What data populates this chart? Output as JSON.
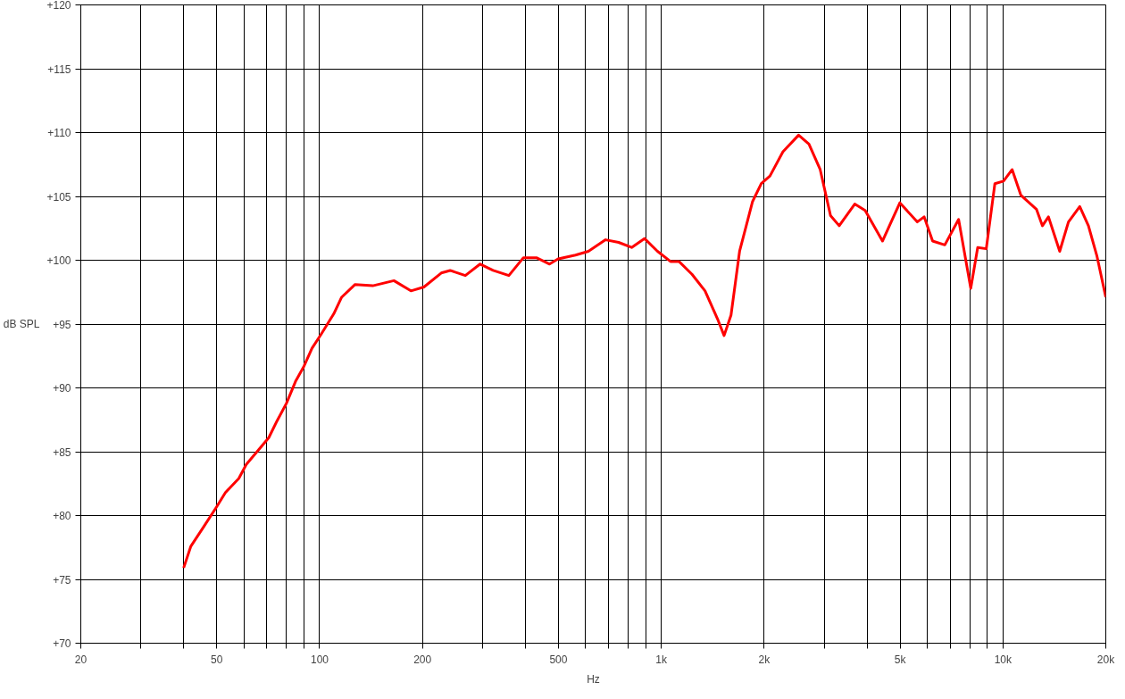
{
  "chart_data": {
    "type": "line",
    "xlabel": "Hz",
    "ylabel": "dB SPL",
    "log": "x",
    "grid": true,
    "line_style": "solid",
    "xlim": [
      20,
      20000
    ],
    "ylim": [
      70,
      120
    ],
    "xticks": [
      20,
      {
        "value": 30,
        "label": null
      },
      {
        "value": 40,
        "label": null
      },
      50,
      {
        "value": 60,
        "label": null
      },
      {
        "value": 70,
        "label": null
      },
      {
        "value": 80,
        "label": null
      },
      {
        "value": 90,
        "label": null
      },
      100,
      200,
      {
        "value": 300,
        "label": null
      },
      {
        "value": 400,
        "label": null
      },
      500,
      {
        "value": 600,
        "label": null
      },
      {
        "value": 700,
        "label": null
      },
      {
        "value": 800,
        "label": null
      },
      {
        "value": 900,
        "label": null
      },
      {
        "value": 1000,
        "label": "1k"
      },
      {
        "value": 2000,
        "label": "2k"
      },
      {
        "value": 3000,
        "label": null
      },
      {
        "value": 4000,
        "label": null
      },
      {
        "value": 5000,
        "label": "5k"
      },
      {
        "value": 6000,
        "label": null
      },
      {
        "value": 7000,
        "label": null
      },
      {
        "value": 8000,
        "label": null
      },
      {
        "value": 9000,
        "label": null
      },
      {
        "value": 10000,
        "label": "10k"
      },
      {
        "value": 20000,
        "label": "20k"
      }
    ],
    "yticks": [
      {
        "value": 70,
        "label": "+70"
      },
      {
        "value": 75,
        "label": "+75"
      },
      {
        "value": 80,
        "label": "+80"
      },
      {
        "value": 85,
        "label": "+85"
      },
      {
        "value": 90,
        "label": "+90"
      },
      {
        "value": 95,
        "label": "+95"
      },
      {
        "value": 100,
        "label": "+100"
      },
      {
        "value": 105,
        "label": "+105"
      },
      {
        "value": 110,
        "label": "+110"
      },
      {
        "value": 115,
        "label": "+115"
      },
      {
        "value": 120,
        "label": "+120"
      }
    ],
    "series": [
      {
        "color": "#ff0000",
        "x": [
          40,
          42,
          46,
          50,
          53,
          58,
          61,
          67,
          71,
          75,
          80,
          85,
          90,
          95,
          101,
          110,
          116,
          127,
          143,
          165,
          185,
          202,
          227,
          241,
          267,
          295,
          322,
          358,
          395,
          431,
          471,
          499,
          561,
          612,
          687,
          750,
          819,
          893,
          975,
          1064,
          1127,
          1230,
          1343,
          1466,
          1527,
          1600,
          1695,
          1850,
          1962,
          2080,
          2270,
          2523,
          2705,
          2918,
          3128,
          3317,
          3683,
          3951,
          4440,
          4993,
          5612,
          5880,
          6225,
          6758,
          7417,
          8050,
          8435,
          8937,
          9470,
          10040,
          10640,
          11280,
          12530,
          13050,
          13590,
          14660,
          15550,
          16780,
          17790,
          18850,
          20000
        ],
        "values": [
          75.9,
          77.6,
          79.2,
          80.7,
          81.8,
          82.9,
          84.0,
          85.3,
          86.1,
          87.4,
          88.8,
          90.5,
          91.7,
          93.1,
          94.2,
          95.8,
          97.1,
          98.1,
          98.0,
          98.4,
          97.6,
          97.9,
          99.0,
          99.2,
          98.8,
          99.7,
          99.2,
          98.8,
          100.2,
          100.2,
          99.7,
          100.1,
          100.4,
          100.7,
          101.6,
          101.4,
          101.0,
          101.7,
          100.7,
          99.9,
          99.9,
          98.9,
          97.6,
          95.3,
          94.1,
          95.7,
          100.7,
          104.6,
          106.0,
          106.6,
          108.5,
          109.8,
          109.1,
          107.1,
          103.5,
          102.7,
          104.4,
          103.9,
          101.5,
          104.5,
          103.0,
          103.4,
          101.5,
          101.2,
          103.2,
          97.8,
          101.0,
          100.9,
          106.0,
          106.2,
          107.1,
          105.1,
          104.0,
          102.7,
          103.4,
          100.7,
          103.0,
          104.2,
          102.7,
          100.3,
          97.1
        ]
      }
    ]
  }
}
